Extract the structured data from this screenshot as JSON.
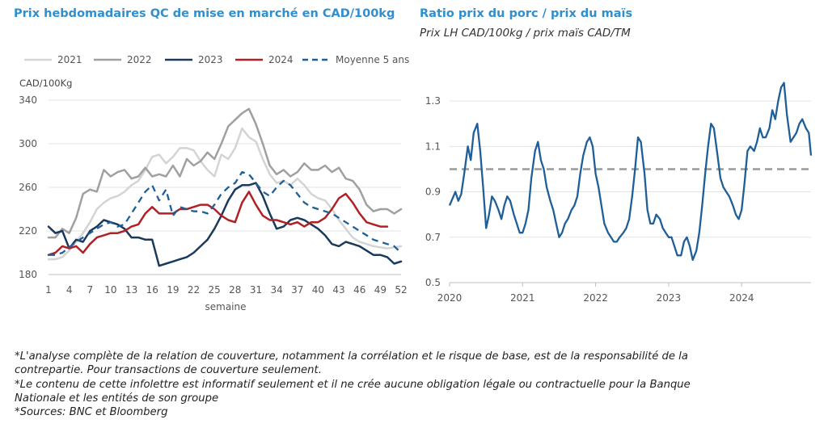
{
  "left_title": "Prix hebdomadaires QC de mise en marché en CAD/100kg",
  "right_title": "Ratio prix du porc / prix du maïs",
  "right_subtitle": "Prix LH CAD/100kg / prix maïs CAD/TM",
  "notes": [
    "*L'analyse complète de la relation de couverture, notamment la corrélation et le risque de base, est de la responsabilité de la contrepartie. Pour transactions de couverture seulement.",
    "*Le contenu de cette infolettre est informatif seulement et il ne crée aucune obligation légale ou contractuelle pour la Banque Nationale et les entités de son groupe",
    "*Sources: BNC et Bloomberg"
  ],
  "chart_data": [
    {
      "type": "line",
      "title": "Prix hebdomadaires QC de mise en marché en CAD/100kg",
      "xlabel": "semaine",
      "ylabel": "CAD/100Kg",
      "xlim": [
        1,
        52
      ],
      "ylim": [
        180,
        340
      ],
      "xticks": [
        1,
        4,
        7,
        10,
        13,
        16,
        19,
        22,
        25,
        28,
        31,
        34,
        37,
        40,
        43,
        46,
        49,
        52
      ],
      "yticks": [
        180,
        220,
        260,
        300,
        340
      ],
      "grid": "horizontal",
      "legend_position": "top",
      "series": [
        {
          "name": "2021",
          "color": "#d4d4d4",
          "dash": false,
          "width": 2.5,
          "values": [
            194,
            194,
            196,
            202,
            210,
            218,
            228,
            240,
            246,
            250,
            252,
            256,
            262,
            266,
            276,
            288,
            290,
            282,
            288,
            296,
            296,
            294,
            284,
            276,
            270,
            290,
            286,
            296,
            314,
            306,
            302,
            286,
            272,
            264,
            266,
            262,
            268,
            262,
            254,
            250,
            248,
            240,
            230,
            222,
            214,
            210,
            208,
            206,
            205,
            204,
            205,
            206
          ]
        },
        {
          "name": "2022",
          "color": "#a0a0a0",
          "dash": false,
          "width": 2.5,
          "values": [
            214,
            214,
            222,
            218,
            232,
            254,
            258,
            256,
            276,
            270,
            274,
            276,
            268,
            270,
            278,
            270,
            272,
            270,
            280,
            270,
            286,
            280,
            284,
            292,
            286,
            300,
            316,
            322,
            328,
            332,
            318,
            300,
            280,
            272,
            276,
            270,
            274,
            282,
            276,
            276,
            280,
            274,
            278,
            268,
            266,
            258,
            244,
            238,
            240,
            240,
            236,
            240
          ]
        },
        {
          "name": "2023",
          "color": "#1a3a5c",
          "dash": false,
          "width": 2.5,
          "values": [
            224,
            218,
            220,
            204,
            212,
            210,
            220,
            224,
            230,
            228,
            226,
            222,
            214,
            214,
            212,
            212,
            188,
            190,
            192,
            194,
            196,
            200,
            206,
            212,
            222,
            234,
            248,
            258,
            262,
            262,
            264,
            252,
            236,
            222,
            224,
            230,
            232,
            230,
            226,
            222,
            216,
            208,
            206,
            210,
            208,
            206,
            202,
            198,
            198,
            196,
            190,
            192
          ]
        },
        {
          "name": "2024",
          "color": "#b02025",
          "dash": false,
          "width": 2.5,
          "values": [
            198,
            200,
            206,
            204,
            206,
            200,
            208,
            214,
            216,
            218,
            218,
            220,
            224,
            226,
            236,
            242,
            236,
            236,
            236,
            240,
            240,
            242,
            244,
            244,
            240,
            234,
            230,
            228,
            246,
            256,
            244,
            234,
            230,
            230,
            228,
            226,
            228,
            224,
            228,
            228,
            232,
            240,
            250,
            254,
            246,
            236,
            228,
            226,
            224,
            224,
            null,
            null
          ]
        },
        {
          "name": "Moyenne 5 ans",
          "color": "#1f5f99",
          "dash": true,
          "width": 2.3,
          "values": [
            198,
            198,
            200,
            205,
            210,
            214,
            218,
            222,
            226,
            228,
            224,
            226,
            236,
            246,
            256,
            262,
            248,
            258,
            234,
            242,
            240,
            238,
            238,
            236,
            244,
            254,
            260,
            264,
            274,
            272,
            264,
            256,
            252,
            260,
            266,
            262,
            254,
            246,
            242,
            240,
            238,
            236,
            232,
            228,
            224,
            220,
            216,
            212,
            210,
            208,
            206,
            200
          ]
        }
      ]
    },
    {
      "type": "line",
      "title": "Ratio prix du porc / prix du maïs",
      "subtitle": "Prix LH CAD/100kg / prix maïs CAD/TM",
      "xlim": [
        2020.0,
        2024.95
      ],
      "ylim": [
        0.5,
        1.4
      ],
      "xticks": [
        "2020",
        "2021",
        "2022",
        "2023",
        "2024"
      ],
      "yticks": [
        0.5,
        0.7,
        0.9,
        1.1,
        1.3
      ],
      "grid": "horizontal",
      "reference_line": {
        "y": 1.0,
        "color": "#9a9a9a",
        "dash": true
      },
      "series": [
        {
          "name": "",
          "color": "#1f5f99",
          "x": [
            2020.0,
            2020.04,
            2020.08,
            2020.12,
            2020.16,
            2020.2,
            2020.25,
            2020.29,
            2020.33,
            2020.38,
            2020.42,
            2020.46,
            2020.5,
            2020.54,
            2020.58,
            2020.62,
            2020.67,
            2020.71,
            2020.75,
            2020.79,
            2020.83,
            2020.88,
            2020.92,
            2020.96,
            2021.0,
            2021.04,
            2021.08,
            2021.12,
            2021.17,
            2021.21,
            2021.25,
            2021.29,
            2021.33,
            2021.38,
            2021.42,
            2021.46,
            2021.5,
            2021.54,
            2021.58,
            2021.62,
            2021.67,
            2021.71,
            2021.75,
            2021.79,
            2021.83,
            2021.88,
            2021.92,
            2021.96,
            2022.0,
            2022.04,
            2022.08,
            2022.12,
            2022.17,
            2022.21,
            2022.25,
            2022.29,
            2022.33,
            2022.38,
            2022.42,
            2022.46,
            2022.5,
            2022.54,
            2022.58,
            2022.62,
            2022.67,
            2022.71,
            2022.75,
            2022.79,
            2022.83,
            2022.88,
            2022.92,
            2022.96,
            2023.0,
            2023.04,
            2023.08,
            2023.12,
            2023.17,
            2023.21,
            2023.25,
            2023.29,
            2023.33,
            2023.38,
            2023.42,
            2023.46,
            2023.5,
            2023.54,
            2023.58,
            2023.62,
            2023.67,
            2023.71,
            2023.75,
            2023.79,
            2023.83,
            2023.88,
            2023.92,
            2023.96,
            2024.0,
            2024.04,
            2024.08,
            2024.12,
            2024.17,
            2024.21,
            2024.25,
            2024.29,
            2024.33,
            2024.38,
            2024.42,
            2024.46,
            2024.5,
            2024.54,
            2024.58,
            2024.62,
            2024.67,
            2024.71,
            2024.75,
            2024.79,
            2024.83,
            2024.88,
            2024.92,
            2024.95
          ],
          "y": [
            0.84,
            0.87,
            0.9,
            0.86,
            0.89,
            0.98,
            1.1,
            1.04,
            1.16,
            1.2,
            1.08,
            0.92,
            0.74,
            0.8,
            0.88,
            0.86,
            0.82,
            0.78,
            0.84,
            0.88,
            0.86,
            0.8,
            0.76,
            0.72,
            0.72,
            0.76,
            0.82,
            0.96,
            1.08,
            1.12,
            1.04,
            1.0,
            0.92,
            0.86,
            0.82,
            0.76,
            0.7,
            0.72,
            0.76,
            0.78,
            0.82,
            0.84,
            0.88,
            0.98,
            1.06,
            1.12,
            1.14,
            1.1,
            0.98,
            0.92,
            0.84,
            0.76,
            0.72,
            0.7,
            0.68,
            0.68,
            0.7,
            0.72,
            0.74,
            0.78,
            0.88,
            1.0,
            1.14,
            1.12,
            0.98,
            0.82,
            0.76,
            0.76,
            0.8,
            0.78,
            0.74,
            0.72,
            0.7,
            0.7,
            0.66,
            0.62,
            0.62,
            0.68,
            0.7,
            0.66,
            0.6,
            0.64,
            0.72,
            0.84,
            0.98,
            1.1,
            1.2,
            1.18,
            1.06,
            0.96,
            0.92,
            0.9,
            0.88,
            0.84,
            0.8,
            0.78,
            0.82,
            0.94,
            1.08,
            1.1,
            1.08,
            1.12,
            1.18,
            1.14,
            1.14,
            1.18,
            1.26,
            1.22,
            1.3,
            1.36,
            1.38,
            1.24,
            1.12,
            1.14,
            1.16,
            1.2,
            1.22,
            1.18,
            1.16,
            1.06
          ]
        }
      ]
    }
  ],
  "legend": [
    {
      "label": "2021",
      "color": "#d4d4d4",
      "dash": false
    },
    {
      "label": "2022",
      "color": "#a0a0a0",
      "dash": false
    },
    {
      "label": "2023",
      "color": "#1a3a5c",
      "dash": false
    },
    {
      "label": "2024",
      "color": "#b02025",
      "dash": false
    },
    {
      "label": "Moyenne 5 ans",
      "color": "#1f5f99",
      "dash": true
    }
  ]
}
